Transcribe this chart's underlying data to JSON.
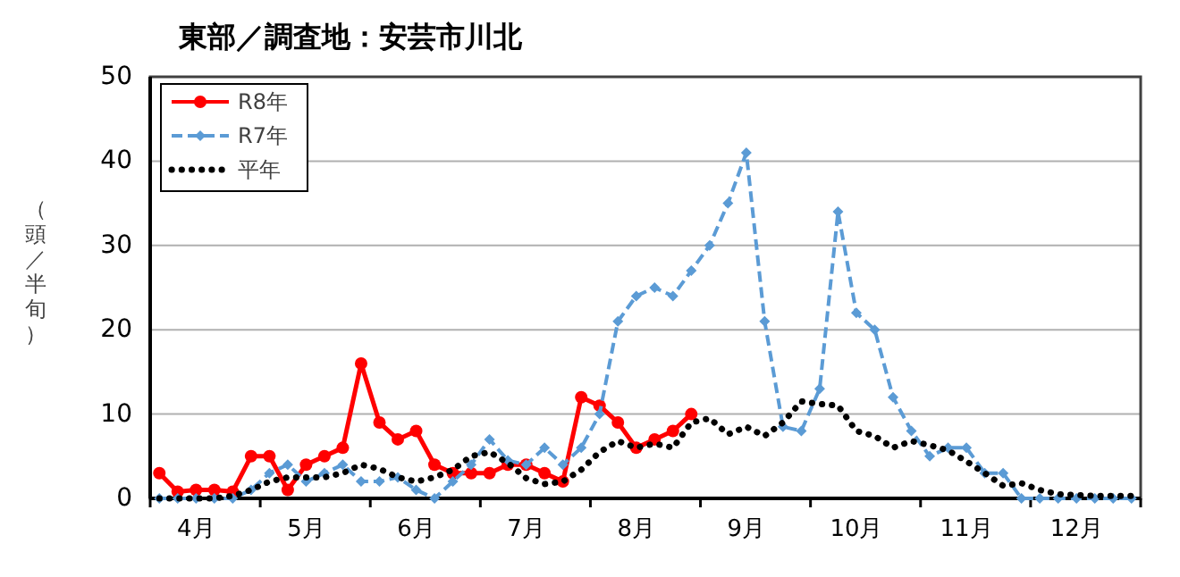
{
  "chart_data": {
    "type": "line",
    "title": "東部／調査地：安芸市川北",
    "ylabel": "（頭／半旬）",
    "categories": [
      null,
      null,
      "4月",
      null,
      null,
      null,
      null,
      null,
      "5月",
      null,
      null,
      null,
      null,
      null,
      "6月",
      null,
      null,
      null,
      null,
      null,
      "7月",
      null,
      null,
      null,
      null,
      null,
      "8月",
      null,
      null,
      null,
      null,
      null,
      "9月",
      null,
      null,
      null,
      null,
      null,
      "10月",
      null,
      null,
      null,
      null,
      null,
      "11月",
      null,
      null,
      null,
      null,
      null,
      "12月",
      null,
      null,
      null
    ],
    "ylim": [
      0,
      50
    ],
    "yticks": [
      0,
      10,
      20,
      30,
      40,
      50
    ],
    "grid": "y",
    "legend": "top left",
    "series": [
      {
        "name": "R8年",
        "color": "#ff0000",
        "marker": "circle",
        "line_style": "solid",
        "values": [
          3,
          0.8,
          1,
          1,
          0.8,
          5,
          5,
          1,
          4,
          5,
          6,
          16,
          9,
          7,
          8,
          4,
          3,
          3,
          3,
          4,
          4,
          3,
          2,
          12,
          11,
          9,
          6,
          7,
          8,
          10,
          null,
          null,
          null,
          null,
          null,
          null,
          null,
          null,
          null,
          null,
          null,
          null,
          null,
          null,
          null,
          null,
          null,
          null,
          null,
          null,
          null,
          null,
          null,
          null
        ]
      },
      {
        "name": "R7年",
        "color": "#5b9bd5",
        "marker": "diamond",
        "line_style": "dashed",
        "values": [
          0,
          0,
          0,
          0,
          0,
          1,
          3,
          4,
          2,
          3,
          4,
          2,
          2,
          2.5,
          1,
          0,
          2,
          4,
          7,
          4.5,
          4,
          6,
          4,
          6,
          10,
          21,
          24,
          25,
          24,
          27,
          30,
          35,
          41,
          21,
          8.5,
          8,
          13,
          34,
          22,
          20,
          12,
          8,
          5,
          6,
          6,
          3,
          3,
          0,
          0,
          0,
          0,
          0,
          0,
          0
        ]
      },
      {
        "name": "平年",
        "color": "#000000",
        "marker": "none",
        "line_style": "dotted",
        "values": [
          0,
          0,
          0,
          0,
          0.3,
          1,
          2,
          2.5,
          2.5,
          2.5,
          3,
          4,
          3.5,
          2.5,
          2,
          2.5,
          3.4,
          5,
          5.5,
          4.2,
          2.4,
          1.7,
          2,
          3.4,
          5.5,
          6.8,
          6,
          6.5,
          6,
          9,
          9.5,
          7.6,
          8.5,
          7.4,
          9,
          11.5,
          11.2,
          11,
          8,
          7.4,
          6,
          6.8,
          6.3,
          5.7,
          4.4,
          3,
          1.5,
          1.8,
          1,
          0.5,
          0.4,
          0.3,
          0.3,
          0.3
        ]
      }
    ]
  }
}
